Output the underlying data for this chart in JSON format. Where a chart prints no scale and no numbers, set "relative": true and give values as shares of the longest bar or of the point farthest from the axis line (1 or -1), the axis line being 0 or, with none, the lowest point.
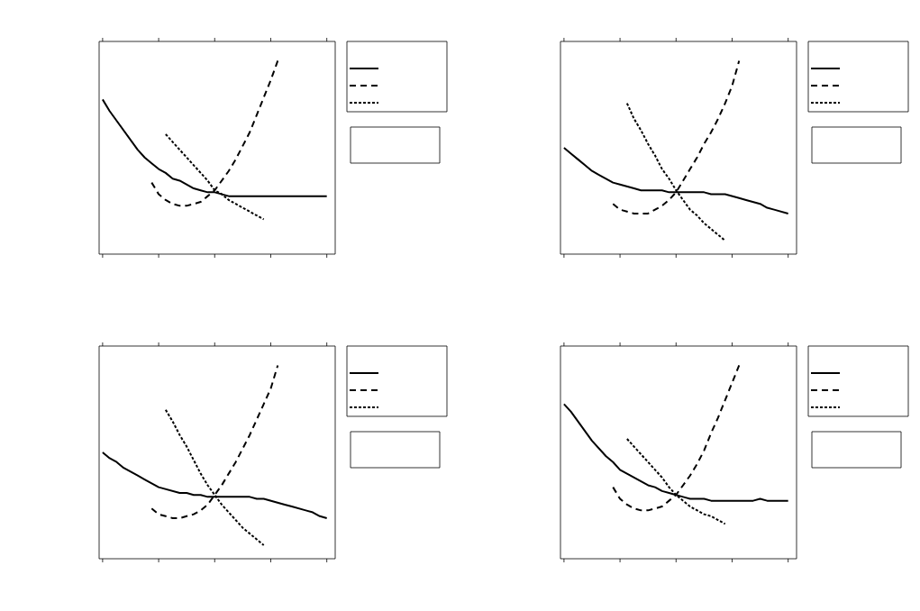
{
  "chart_data": [
    {
      "type": "line",
      "relative": true,
      "categories": [
        null,
        null,
        null,
        null,
        null,
        null,
        null,
        null,
        null,
        null,
        null,
        null,
        null,
        null,
        null,
        null,
        null,
        null,
        null,
        null,
        null,
        null,
        null,
        null,
        null,
        null,
        null,
        null,
        null,
        null,
        null,
        null,
        null
      ],
      "series": [
        {
          "color": "#000000",
          "line_style": "solid",
          "values": [
            0.8,
            0.74,
            0.69,
            0.64,
            0.59,
            0.54,
            0.5,
            0.47,
            0.44,
            0.42,
            0.39,
            0.38,
            0.36,
            0.34,
            0.33,
            0.32,
            0.32,
            0.31,
            0.3,
            0.3,
            0.3,
            0.3,
            0.3,
            0.3,
            0.3,
            0.3,
            0.3,
            0.3,
            0.3,
            0.3,
            0.3,
            0.3,
            0.3
          ]
        },
        {
          "color": "#000000",
          "line_style": "dashed",
          "values": [
            null,
            null,
            null,
            null,
            null,
            null,
            null,
            0.37,
            0.31,
            0.28,
            0.26,
            0.25,
            0.25,
            0.26,
            0.27,
            0.3,
            0.33,
            0.38,
            0.43,
            0.49,
            0.56,
            0.63,
            0.72,
            0.81,
            0.9,
            1,
            null,
            null,
            null,
            null,
            null,
            null,
            null
          ]
        },
        {
          "color": "#000000",
          "line_style": "dotted",
          "values": [
            null,
            null,
            null,
            null,
            null,
            null,
            null,
            null,
            null,
            0.62,
            0.58,
            0.54,
            0.5,
            0.46,
            0.42,
            0.38,
            0.33,
            0.31,
            0.28,
            0.26,
            0.24,
            0.22,
            0.2,
            0.18,
            null,
            null,
            null,
            null,
            null,
            null,
            null,
            null,
            null
          ]
        }
      ]
    },
    {
      "type": "line",
      "relative": true,
      "categories": [
        null,
        null,
        null,
        null,
        null,
        null,
        null,
        null,
        null,
        null,
        null,
        null,
        null,
        null,
        null,
        null,
        null,
        null,
        null,
        null,
        null,
        null,
        null,
        null,
        null,
        null,
        null,
        null,
        null,
        null,
        null,
        null,
        null
      ],
      "series": [
        {
          "color": "#000000",
          "line_style": "solid",
          "values": [
            0.55,
            0.52,
            0.49,
            0.46,
            0.43,
            0.41,
            0.39,
            0.37,
            0.36,
            0.35,
            0.34,
            0.33,
            0.33,
            0.33,
            0.33,
            0.32,
            0.32,
            0.32,
            0.32,
            0.32,
            0.32,
            0.31,
            0.31,
            0.31,
            0.3,
            0.29,
            0.28,
            0.27,
            0.26,
            0.24,
            0.23,
            0.22,
            0.21
          ]
        },
        {
          "color": "#000000",
          "line_style": "dashed",
          "values": [
            null,
            null,
            null,
            null,
            null,
            null,
            null,
            0.26,
            0.23,
            0.22,
            0.21,
            0.21,
            0.21,
            0.23,
            0.25,
            0.28,
            0.32,
            0.38,
            0.44,
            0.5,
            0.57,
            0.63,
            0.7,
            0.78,
            0.87,
            1,
            null,
            null,
            null,
            null,
            null,
            null,
            null
          ]
        },
        {
          "color": "#000000",
          "line_style": "dotted",
          "values": [
            null,
            null,
            null,
            null,
            null,
            null,
            null,
            null,
            null,
            0.78,
            0.7,
            0.64,
            0.57,
            0.51,
            0.44,
            0.39,
            0.33,
            0.28,
            0.23,
            0.2,
            0.16,
            0.13,
            0.1,
            0.07,
            null,
            null,
            null,
            null,
            null,
            null,
            null,
            null,
            null
          ]
        }
      ]
    },
    {
      "type": "line",
      "relative": true,
      "categories": [
        null,
        null,
        null,
        null,
        null,
        null,
        null,
        null,
        null,
        null,
        null,
        null,
        null,
        null,
        null,
        null,
        null,
        null,
        null,
        null,
        null,
        null,
        null,
        null,
        null,
        null,
        null,
        null,
        null,
        null,
        null,
        null,
        null
      ],
      "series": [
        {
          "color": "#000000",
          "line_style": "solid",
          "values": [
            0.55,
            0.52,
            0.5,
            0.47,
            0.45,
            0.43,
            0.41,
            0.39,
            0.37,
            0.36,
            0.35,
            0.34,
            0.34,
            0.33,
            0.33,
            0.32,
            0.32,
            0.32,
            0.32,
            0.32,
            0.32,
            0.32,
            0.31,
            0.31,
            0.3,
            0.29,
            0.28,
            0.27,
            0.26,
            0.25,
            0.24,
            0.22,
            0.21
          ]
        },
        {
          "color": "#000000",
          "line_style": "dashed",
          "values": [
            null,
            null,
            null,
            null,
            null,
            null,
            null,
            0.26,
            0.23,
            0.22,
            0.21,
            0.21,
            0.22,
            0.23,
            0.25,
            0.28,
            0.33,
            0.38,
            0.44,
            0.5,
            0.57,
            0.64,
            0.72,
            0.8,
            0.88,
            1,
            null,
            null,
            null,
            null,
            null,
            null,
            null
          ]
        },
        {
          "color": "#000000",
          "line_style": "dotted",
          "values": [
            null,
            null,
            null,
            null,
            null,
            null,
            null,
            null,
            null,
            0.77,
            0.71,
            0.64,
            0.58,
            0.51,
            0.44,
            0.38,
            0.33,
            0.28,
            0.24,
            0.2,
            0.16,
            0.13,
            0.1,
            0.07,
            null,
            null,
            null,
            null,
            null,
            null,
            null,
            null,
            null
          ]
        }
      ]
    },
    {
      "type": "line",
      "relative": true,
      "categories": [
        null,
        null,
        null,
        null,
        null,
        null,
        null,
        null,
        null,
        null,
        null,
        null,
        null,
        null,
        null,
        null,
        null,
        null,
        null,
        null,
        null,
        null,
        null,
        null,
        null,
        null,
        null,
        null,
        null,
        null,
        null,
        null,
        null
      ],
      "series": [
        {
          "color": "#000000",
          "line_style": "solid",
          "values": [
            0.8,
            0.76,
            0.71,
            0.66,
            0.61,
            0.57,
            0.53,
            0.5,
            0.46,
            0.44,
            0.42,
            0.4,
            0.38,
            0.37,
            0.35,
            0.34,
            0.33,
            0.32,
            0.31,
            0.31,
            0.31,
            0.3,
            0.3,
            0.3,
            0.3,
            0.3,
            0.3,
            0.3,
            0.31,
            0.3,
            0.3,
            0.3,
            0.3
          ]
        },
        {
          "color": "#000000",
          "line_style": "dashed",
          "values": [
            null,
            null,
            null,
            null,
            null,
            null,
            null,
            0.37,
            0.31,
            0.28,
            0.26,
            0.25,
            0.25,
            0.26,
            0.27,
            0.3,
            0.33,
            0.38,
            0.43,
            0.49,
            0.56,
            0.65,
            0.73,
            0.82,
            0.91,
            1,
            null,
            null,
            null,
            null,
            null,
            null,
            null
          ]
        },
        {
          "color": "#000000",
          "line_style": "dotted",
          "values": [
            null,
            null,
            null,
            null,
            null,
            null,
            null,
            null,
            null,
            0.62,
            0.58,
            0.54,
            0.5,
            0.46,
            0.42,
            0.37,
            0.33,
            0.3,
            0.27,
            0.25,
            0.23,
            0.22,
            0.2,
            0.18,
            null,
            null,
            null,
            null,
            null,
            null,
            null,
            null,
            null
          ]
        }
      ]
    }
  ]
}
